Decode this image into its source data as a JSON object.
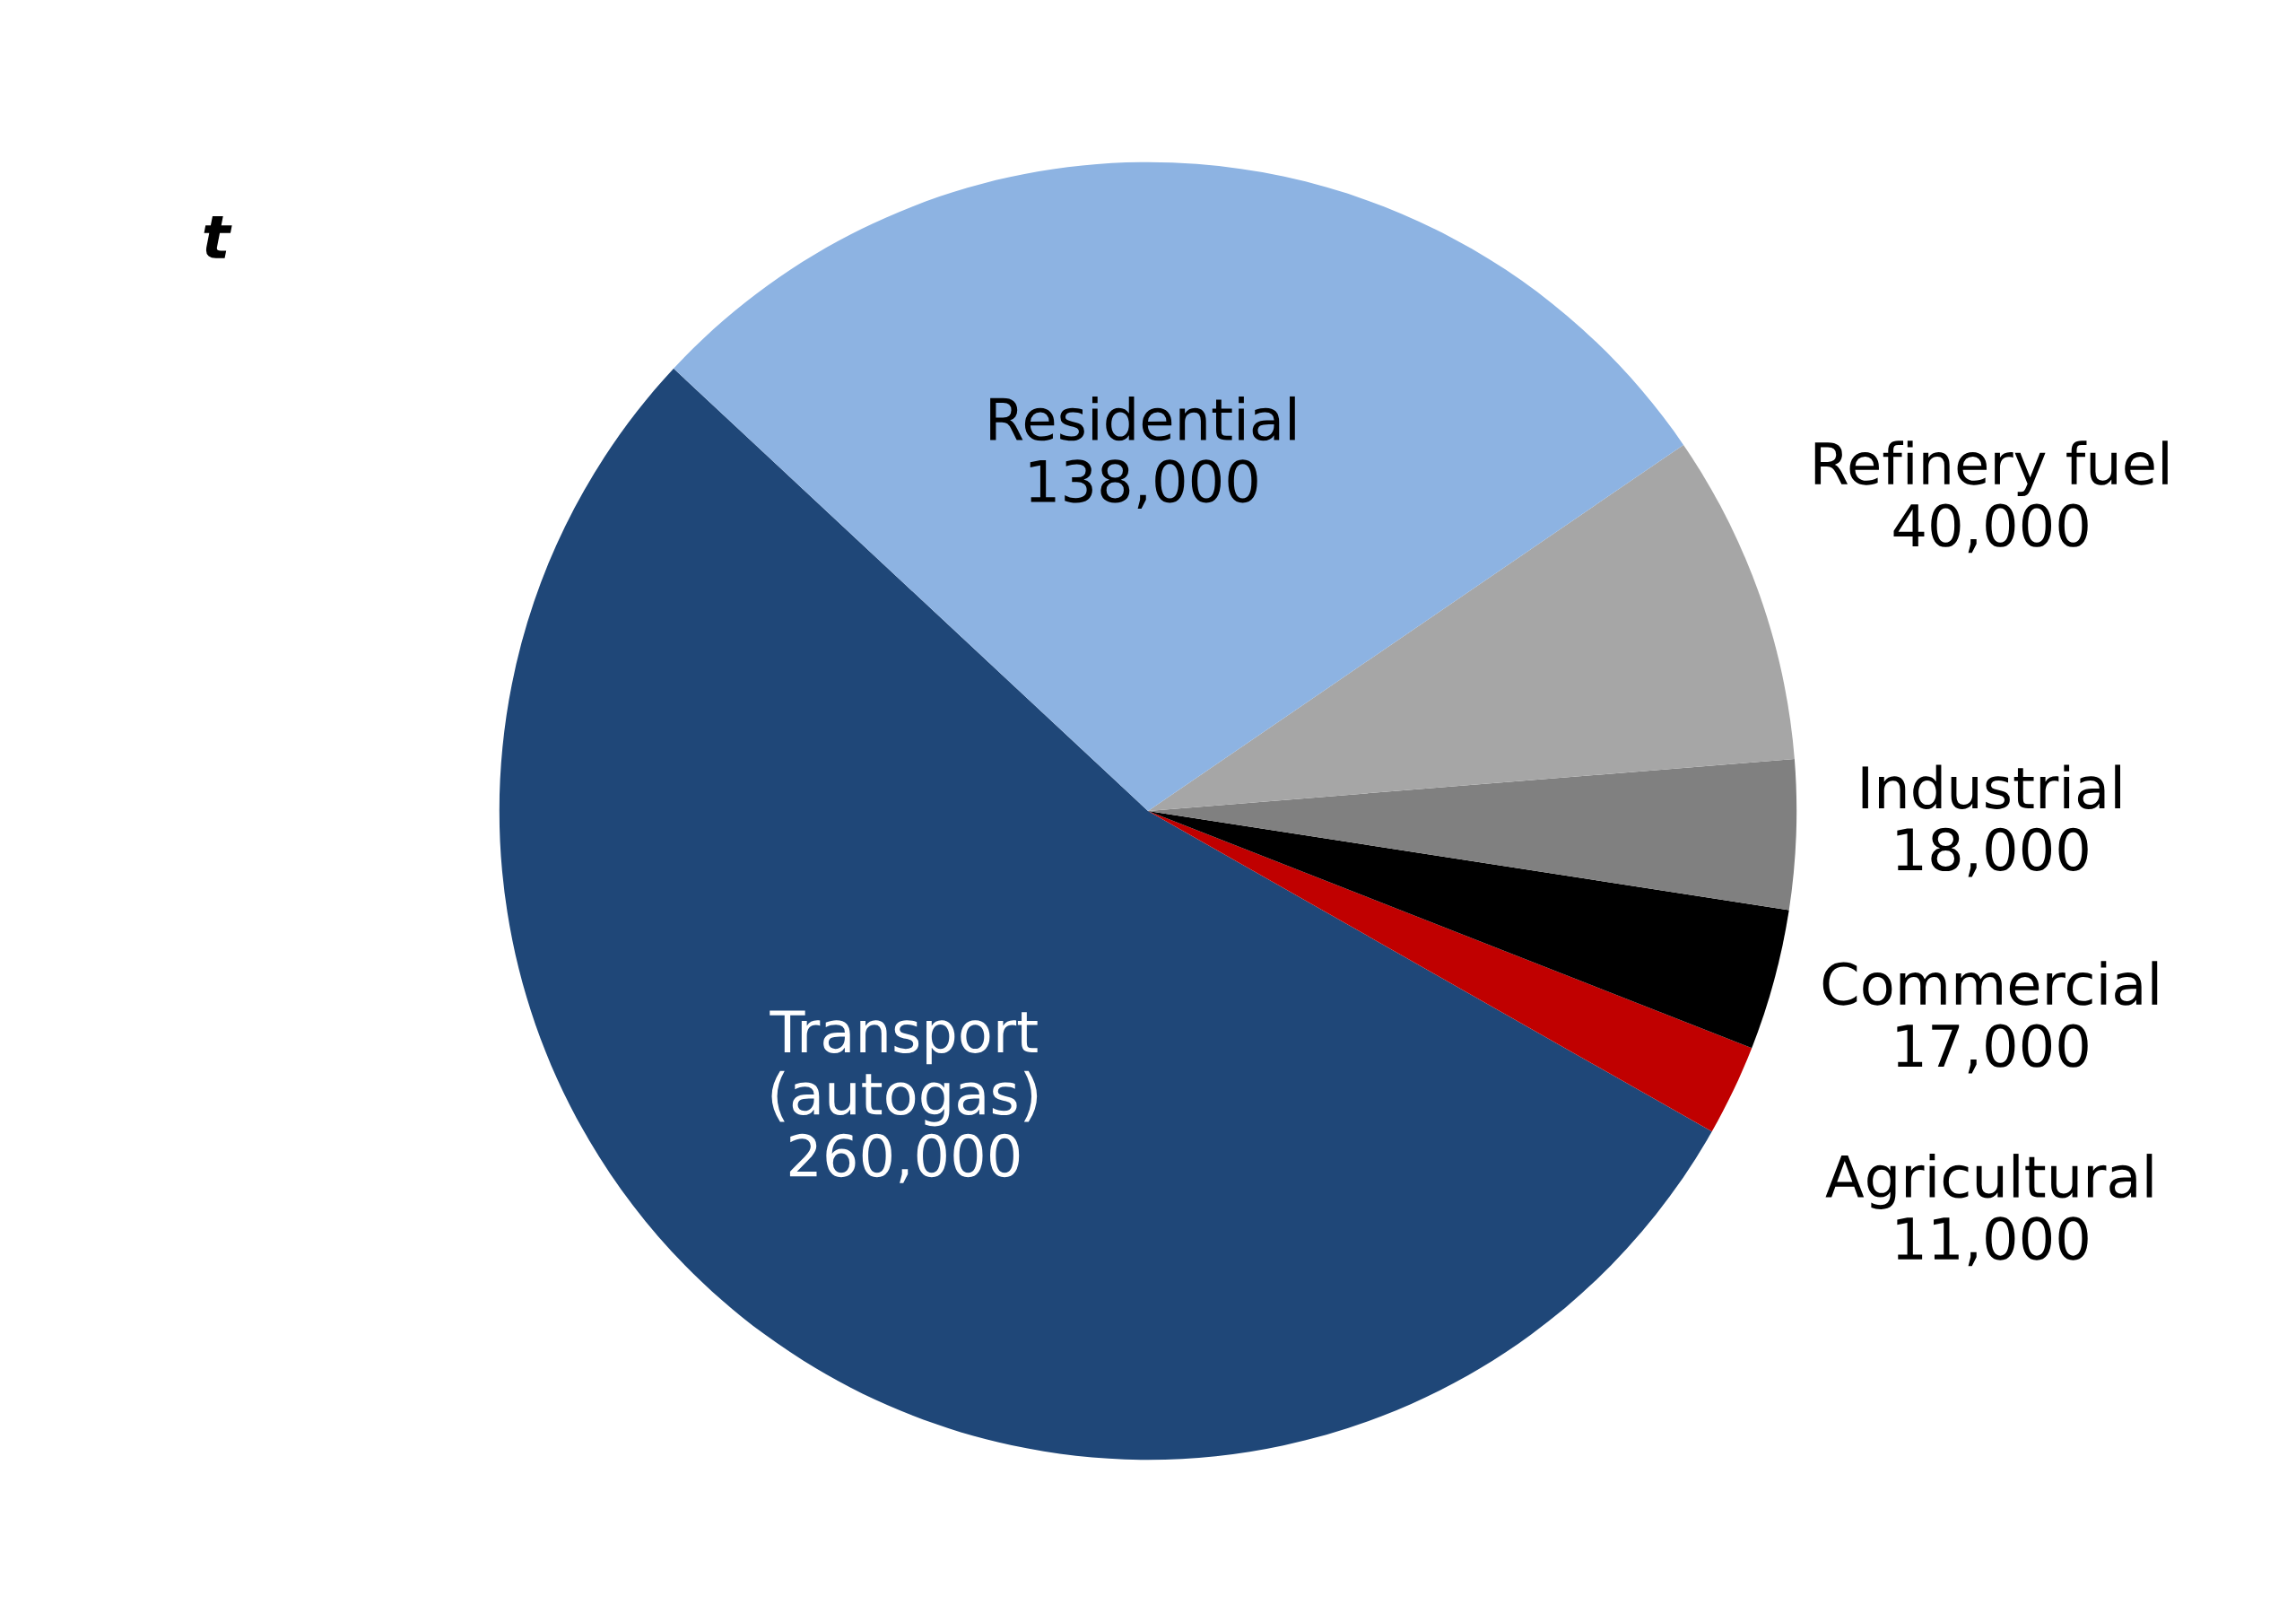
{
  "chart_data": {
    "type": "pie",
    "categories": [
      "Transport\n(autogas)",
      "Agricultural",
      "Commercial",
      "Industrial",
      "Refinery fuel",
      "Residential"
    ],
    "values": [
      260000,
      11000,
      17000,
      18000,
      40000,
      138000
    ],
    "value_labels": [
      "260,000",
      "11,000",
      "17,000",
      "18,000",
      "40,000",
      "138,000"
    ],
    "colors": [
      "#1f4778",
      "#c00000",
      "#000000",
      "#808080",
      "#a6a6a6",
      "#8db3e2"
    ],
    "annotations": [
      "t"
    ],
    "legend": false
  }
}
